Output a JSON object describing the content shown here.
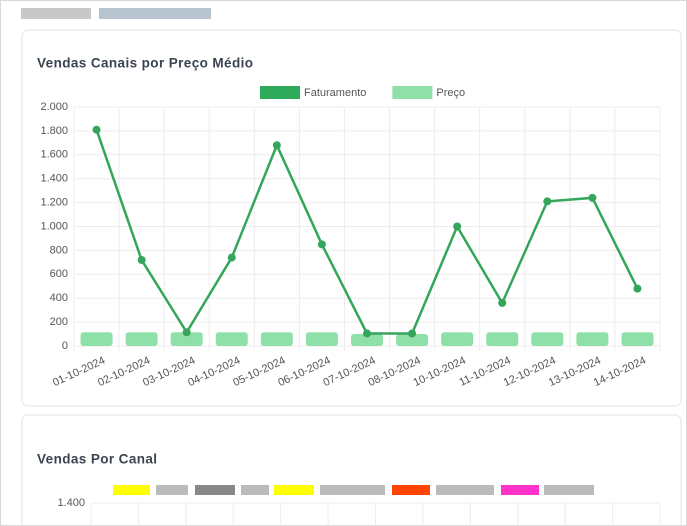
{
  "chart_data": [
    {
      "type": "combo",
      "title": "Vendas Canais por Preço Médio",
      "categories": [
        "01-10-2024",
        "02-10-2024",
        "03-10-2024",
        "04-10-2024",
        "05-10-2024",
        "06-10-2024",
        "07-10-2024",
        "08-10-2024",
        "10-10-2024",
        "11-10-2024",
        "12-10-2024",
        "13-10-2024",
        "14-10-2024"
      ],
      "series": [
        {
          "name": "Faturamento",
          "type": "line",
          "color": "#34a65b",
          "values": [
            1810,
            720,
            115,
            740,
            1680,
            850,
            105,
            105,
            1000,
            360,
            1210,
            1240,
            480
          ]
        },
        {
          "name": "Preço",
          "type": "bar",
          "color": "#8fe0a8",
          "values": [
            115,
            115,
            115,
            115,
            115,
            115,
            100,
            100,
            115,
            115,
            115,
            115,
            115
          ]
        }
      ],
      "ylim": [
        0,
        2000
      ],
      "yticks": [
        0,
        200,
        400,
        600,
        800,
        {
          "value": 1000,
          "label": "1.000"
        },
        {
          "value": 1200,
          "label": "1.200"
        },
        {
          "value": 1400,
          "label": "1.400"
        },
        {
          "value": 1600,
          "label": "1.600"
        },
        {
          "value": 1800,
          "label": "1.800"
        },
        {
          "value": 2000,
          "label": "2.000"
        }
      ],
      "grid": true,
      "legend": "top"
    },
    {
      "type": "bar",
      "title": "Vendas Por Canal",
      "ylim": [
        0,
        1400
      ],
      "yticks": [
        {
          "value": 1400,
          "label": "1.400"
        }
      ]
    }
  ]
}
